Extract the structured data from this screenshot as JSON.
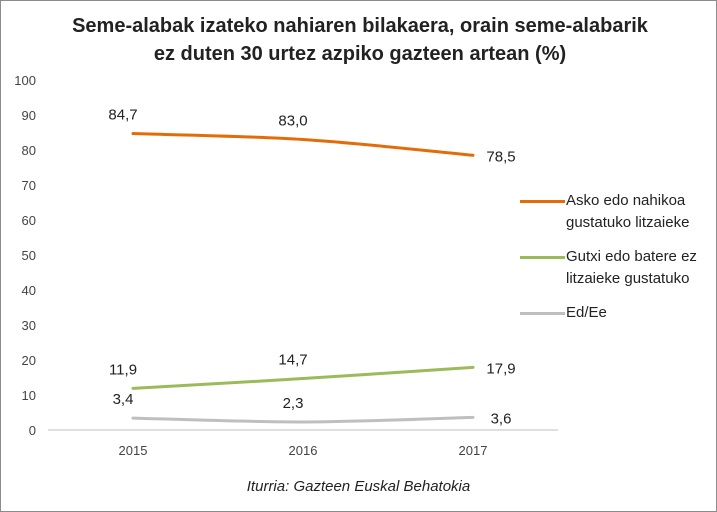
{
  "chart_data": {
    "type": "line",
    "title": "Seme-alabak izateko nahiaren bilakaera, orain seme-alabarik ez duten 30 urtez azpiko gazteen artean (%)",
    "categories": [
      "2015",
      "2016",
      "2017"
    ],
    "ylim": [
      0,
      100
    ],
    "yticks": [
      0,
      10,
      20,
      30,
      40,
      50,
      60,
      70,
      80,
      90,
      100
    ],
    "grid": false,
    "legend_position": "right",
    "series": [
      {
        "name": "Asko edo nahikoa gustatuko litzaieke",
        "values": [
          84.7,
          83.0,
          78.5
        ],
        "labels": [
          "84,7",
          "83,0",
          "78,5"
        ],
        "color": "#E36C09"
      },
      {
        "name": "Gutxi edo batere ez litzaieke gustatuko",
        "values": [
          11.9,
          14.7,
          17.9
        ],
        "labels": [
          "11,9",
          "14,7",
          "17,9"
        ],
        "color": "#9BBB59"
      },
      {
        "name": "Ed/Ee",
        "values": [
          3.4,
          2.3,
          3.6
        ],
        "labels": [
          "3,4",
          "2,3",
          "3,6"
        ],
        "color": "#BFBFBF"
      }
    ],
    "source": "Iturria: Gazteen Euskal Behatokia"
  }
}
